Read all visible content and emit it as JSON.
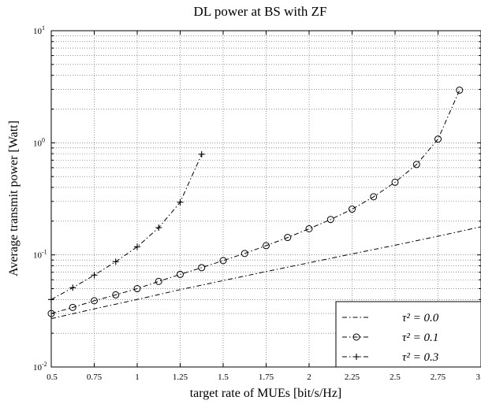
{
  "chart_data": {
    "type": "line",
    "title": "DL power at BS with ZF",
    "xlabel": "target rate of MUEs [bit/s/Hz]",
    "ylabel": "Average transmit power [Watt]",
    "xlim": [
      0.5,
      3
    ],
    "ylim": [
      0.01,
      10
    ],
    "yscale": "log",
    "grid": true,
    "legend_position": "bottom-right",
    "x_ticks": [
      "0.5",
      "0.75",
      "1",
      "1.25",
      "1.5",
      "1.75",
      "2",
      "2.25",
      "2.5",
      "2.75",
      "3"
    ],
    "y_ticks": [
      {
        "base": "10",
        "exp": "-2"
      },
      {
        "base": "10",
        "exp": "-1"
      },
      {
        "base": "10",
        "exp": "0"
      },
      {
        "base": "10",
        "exp": "1"
      }
    ],
    "series": [
      {
        "name": "τ² = 0.0",
        "style": "dash-dot",
        "marker": "none",
        "x": [
          0.5,
          0.75,
          1.0,
          1.25,
          1.5,
          1.75,
          2.0,
          2.25,
          2.5,
          2.75,
          3.0
        ],
        "y": [
          0.027,
          0.033,
          0.04,
          0.049,
          0.059,
          0.071,
          0.085,
          0.102,
          0.122,
          0.147,
          0.178
        ]
      },
      {
        "name": "τ² = 0.1",
        "style": "dash-dot",
        "marker": "circle",
        "x": [
          0.5,
          0.625,
          0.75,
          0.875,
          1.0,
          1.125,
          1.25,
          1.375,
          1.5,
          1.625,
          1.75,
          1.875,
          2.0,
          2.125,
          2.25,
          2.375,
          2.5,
          2.625,
          2.75,
          2.875
        ],
        "y": [
          0.03,
          0.034,
          0.039,
          0.044,
          0.05,
          0.058,
          0.067,
          0.077,
          0.089,
          0.103,
          0.121,
          0.143,
          0.171,
          0.207,
          0.256,
          0.33,
          0.445,
          0.64,
          1.08,
          2.95
        ]
      },
      {
        "name": "τ² = 0.3",
        "style": "dash-dot",
        "marker": "plus",
        "x": [
          0.5,
          0.625,
          0.75,
          0.875,
          1.0,
          1.125,
          1.25,
          1.375
        ],
        "y": [
          0.04,
          0.051,
          0.066,
          0.087,
          0.118,
          0.175,
          0.295,
          0.79
        ]
      }
    ]
  }
}
